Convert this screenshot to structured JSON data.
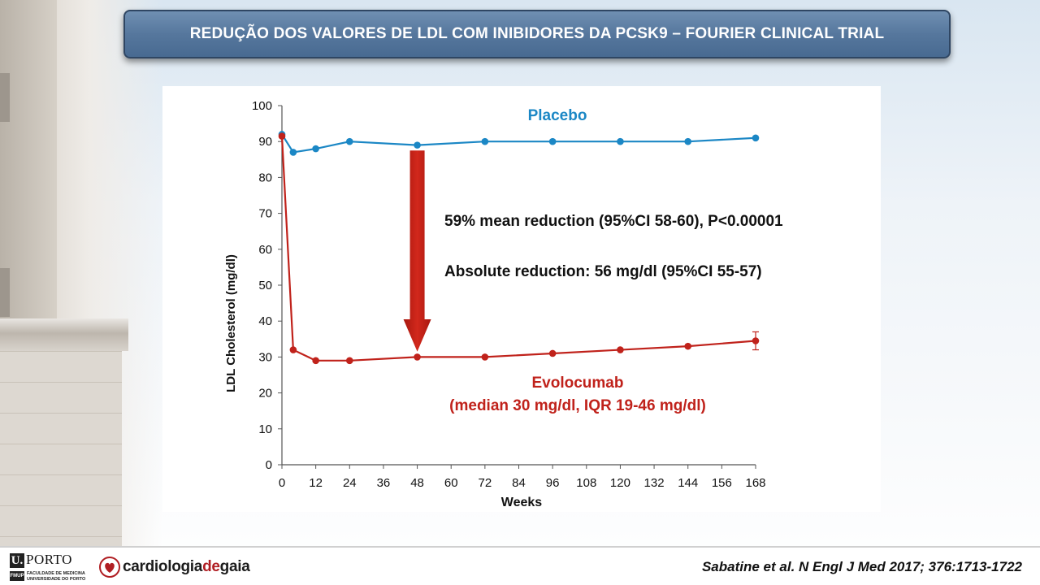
{
  "slide_title": "REDUÇÃO DOS VALORES DE LDL COM INIBIDORES DA PCSK9 – FOURIER CLINICAL TRIAL",
  "chart_data": {
    "type": "line",
    "title": "",
    "xlabel": "Weeks",
    "ylabel": "LDL Cholesterol (mg/dl)",
    "xlim": [
      0,
      168
    ],
    "ylim": [
      0,
      100
    ],
    "x_ticks": [
      "0",
      "12",
      "24",
      "36",
      "48",
      "60",
      "72",
      "84",
      "96",
      "108",
      "120",
      "132",
      "144",
      "156",
      "168"
    ],
    "y_ticks": [
      "0",
      "10",
      "20",
      "30",
      "40",
      "50",
      "60",
      "70",
      "80",
      "90",
      "100"
    ],
    "grid": false,
    "legend": "inline labels",
    "series": [
      {
        "name": "Placebo",
        "color": "#1b87c5",
        "x": [
          0,
          4,
          12,
          24,
          48,
          72,
          96,
          120,
          144,
          168
        ],
        "y": [
          92,
          87,
          88,
          90,
          89,
          90,
          90,
          90,
          90,
          91
        ]
      },
      {
        "name": "Evolocumab",
        "color": "#c0221b",
        "x": [
          0,
          4,
          12,
          24,
          48,
          72,
          96,
          120,
          144,
          168
        ],
        "y": [
          91.5,
          32,
          29,
          29,
          30,
          30,
          31,
          32,
          33,
          34.5
        ],
        "error_bar": {
          "x": 168,
          "low": 32,
          "high": 37
        }
      }
    ],
    "annotations": {
      "placebo_label": "Placebo",
      "evolocumab_label": "Evolocumab",
      "evolocumab_sublabel": "(median 30 mg/dl, IQR 19-46 mg/dl)",
      "mean_reduction": "59% mean reduction (95%CI 58-60), P<0.00001",
      "absolute_reduction": "Absolute reduction: 56 mg/dl (95%CI 55-57)"
    },
    "arrow_color": "#c0221b"
  },
  "footer": {
    "uporto_mark": "U.",
    "uporto_name": "PORTO",
    "fmup": "FMUP",
    "faculty_line1": "FACULDADE DE MEDICINA",
    "faculty_line2": "UNIVERSIDADE DO PORTO",
    "cdg_part1": "cardiologia",
    "cdg_part2": "de",
    "cdg_part3": "gaia",
    "citation": "Sabatine et al. N Engl J Med 2017; 376:1713-1722"
  },
  "icons": [
    "uporto-logo",
    "cardiologiadegaia-heart-logo"
  ]
}
